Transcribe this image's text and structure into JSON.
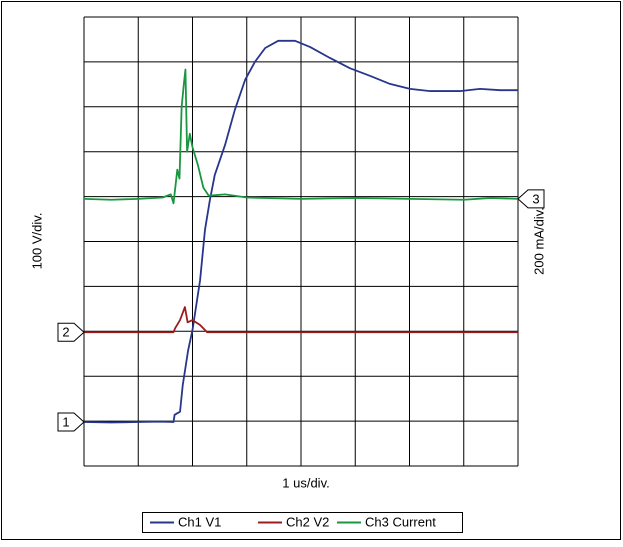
{
  "chart_data": {
    "type": "line",
    "x_label": "1 us/div.",
    "y_label": "100 V/div.",
    "y2_label": "200 mA/div.",
    "xlim": [
      0,
      8
    ],
    "xticks": [
      0,
      1,
      2,
      3,
      4,
      5,
      6,
      7,
      8
    ],
    "ylim": [
      0,
      10
    ],
    "yticks": [
      0,
      1,
      2,
      3,
      4,
      5,
      6,
      7,
      8,
      9,
      10
    ],
    "grid": true,
    "legend": "bottom",
    "channel_markers": [
      {
        "label": "1",
        "value": 0.98,
        "side": "left"
      },
      {
        "label": "2",
        "value": 2.98,
        "side": "left"
      },
      {
        "label": "3",
        "value": 5.95,
        "side": "right"
      }
    ],
    "series": [
      {
        "name": "Ch1 V1",
        "color": "#27358c",
        "x": [
          0,
          0.5,
          1.0,
          1.4,
          1.65,
          1.67,
          1.77,
          1.82,
          1.92,
          2.0,
          2.14,
          2.23,
          2.32,
          2.41,
          2.6,
          2.78,
          2.97,
          3.15,
          3.34,
          3.58,
          3.89,
          4.17,
          4.53,
          4.9,
          5.27,
          5.64,
          6.01,
          6.38,
          6.93,
          7.3,
          7.67,
          8.0
        ],
        "values": [
          0.98,
          0.97,
          0.98,
          0.99,
          0.98,
          1.14,
          1.21,
          1.8,
          2.58,
          3.03,
          4.14,
          5.26,
          5.92,
          6.48,
          7.15,
          7.93,
          8.6,
          9.0,
          9.31,
          9.47,
          9.47,
          9.33,
          9.09,
          8.86,
          8.69,
          8.51,
          8.4,
          8.35,
          8.35,
          8.4,
          8.37,
          8.37
        ]
      },
      {
        "name": "Ch2 V2",
        "color": "#9b1c1c",
        "x": [
          0,
          1.65,
          1.68,
          1.77,
          1.86,
          1.91,
          2.0,
          2.14,
          2.27,
          8.0
        ],
        "values": [
          2.98,
          2.98,
          3.07,
          3.25,
          3.54,
          3.2,
          3.25,
          3.14,
          2.98,
          2.98
        ]
      },
      {
        "name": "Ch3 Current",
        "color": "#1a9641",
        "x": [
          0,
          0.5,
          1.0,
          1.45,
          1.6,
          1.65,
          1.72,
          1.76,
          1.8,
          1.84,
          1.87,
          1.9,
          1.95,
          2.0,
          2.1,
          2.2,
          2.3,
          2.6,
          3.0,
          4.0,
          5.0,
          6.0,
          7.0,
          7.5,
          8.0
        ],
        "values": [
          5.95,
          5.93,
          5.95,
          5.98,
          6.05,
          5.85,
          6.6,
          6.4,
          8.0,
          8.5,
          8.83,
          7.0,
          7.4,
          7.1,
          6.7,
          6.2,
          6.02,
          6.05,
          5.98,
          5.95,
          5.97,
          5.95,
          5.93,
          5.97,
          5.95
        ]
      }
    ]
  }
}
